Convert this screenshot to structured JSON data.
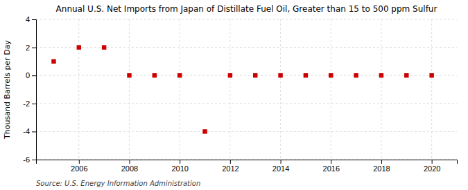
{
  "chart_data": {
    "type": "scatter",
    "title": "Annual U.S. Net Imports from Japan of Distillate Fuel Oil, Greater than 15 to 500 ppm Sulfur",
    "ylabel": "Thousand Barrels per Day",
    "annotations": [
      "Source: U.S. Energy Information Administration"
    ],
    "x": [
      2005,
      2006,
      2007,
      2008,
      2009,
      2010,
      2011,
      2012,
      2013,
      2014,
      2015,
      2016,
      2017,
      2018,
      2019,
      2020
    ],
    "values": [
      1,
      2,
      2,
      0,
      0,
      0,
      -4,
      0,
      0,
      0,
      0,
      0,
      0,
      0,
      0,
      0
    ],
    "color": "#cc0000",
    "marker": "square",
    "xlim": [
      2004.3,
      2021
    ],
    "xticks": [
      2006,
      2008,
      2010,
      2012,
      2014,
      2016,
      2018,
      2020
    ],
    "ylim": [
      -6,
      4
    ],
    "yticks": [
      -6,
      -4,
      -2,
      0,
      2,
      4
    ],
    "grid": true
  }
}
